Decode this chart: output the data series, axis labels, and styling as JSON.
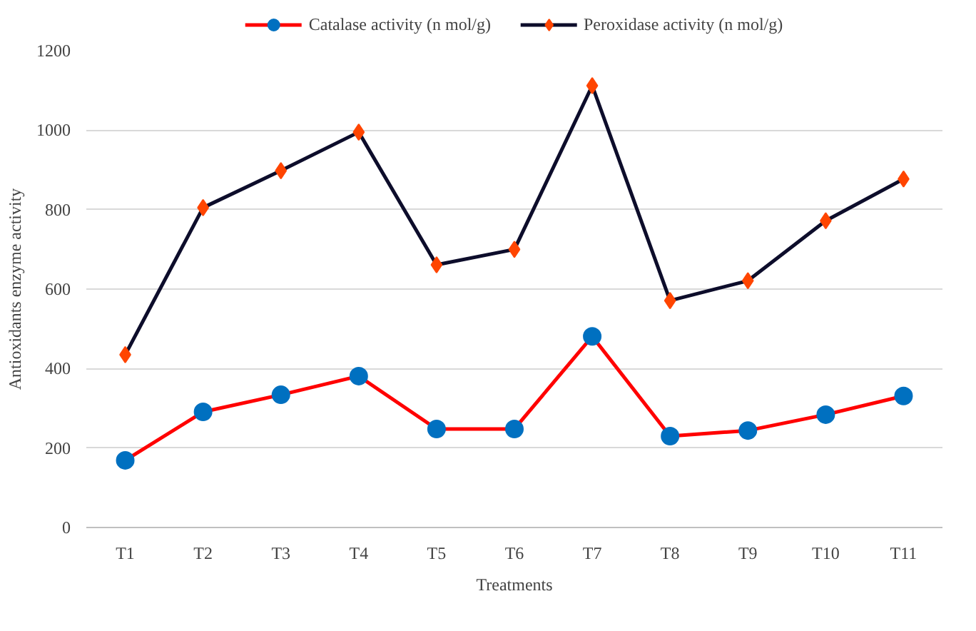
{
  "chart_data": {
    "type": "line",
    "xlabel": "Treatments",
    "ylabel": "Antioxidants enzyme activity",
    "categories": [
      "T1",
      "T2",
      "T3",
      "T4",
      "T5",
      "T6",
      "T7",
      "T8",
      "T9",
      "T10",
      "T11"
    ],
    "series": [
      {
        "name": "Catalase activity (n mol/g)",
        "color": "#ff0000",
        "colors": [
          "#0070c0",
          "#0070c0",
          "#0070c0",
          "#0070c0",
          "#0070c0",
          "#0070c0",
          "#0070c0",
          "#0070c0",
          "#0070c0",
          "#0070c0",
          "#0070c0"
        ],
        "marker": "circle",
        "values": [
          169,
          291,
          334,
          381,
          248,
          248,
          481,
          230,
          244,
          284,
          331
        ]
      },
      {
        "name": "Peroxidase activity (n mol/g)",
        "color": "#0d0d2b",
        "colors": [
          "#ff4500",
          "#ff4500",
          "#ff4500",
          "#ff4500",
          "#ff4500",
          "#ff4500",
          "#ff4500",
          "#ff4500",
          "#ff4500",
          "#ff4500",
          "#ff4500"
        ],
        "marker": "diamond",
        "values": [
          435,
          805,
          898,
          995,
          661,
          700,
          1112,
          571,
          621,
          772,
          877
        ]
      }
    ],
    "ylim": [
      0,
      1200
    ],
    "yticks": [
      0,
      200,
      400,
      600,
      800,
      1000,
      1200
    ],
    "grid": "y",
    "legend": "top",
    "line_style": "solid"
  }
}
